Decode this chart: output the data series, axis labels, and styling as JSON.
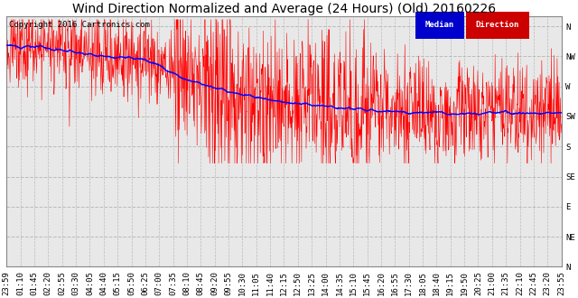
{
  "title": "Wind Direction Normalized and Average (24 Hours) (Old) 20160226",
  "copyright": "Copyright 2016 Cartronics.com",
  "background_color": "#ffffff",
  "plot_bg_color": "#e8e8e8",
  "ytick_labels": [
    "N",
    "NW",
    "W",
    "SW",
    "S",
    "SE",
    "E",
    "NE",
    "N"
  ],
  "ytick_values": [
    360,
    315,
    270,
    225,
    180,
    135,
    90,
    45,
    0
  ],
  "ylim": [
    0,
    375
  ],
  "grid_color": "#bbbbbb",
  "grid_linestyle": "--",
  "legend_median_bg": "#0000cc",
  "legend_direction_bg": "#cc0000",
  "legend_text_color": "#ffffff",
  "red_line_color": "#ff0000",
  "blue_line_color": "#0000ff",
  "title_fontsize": 10,
  "copyright_fontsize": 6.5,
  "tick_fontsize": 6.5,
  "xtick_labels": [
    "23:59",
    "01:10",
    "01:45",
    "02:20",
    "02:55",
    "03:30",
    "04:05",
    "04:40",
    "05:15",
    "05:50",
    "06:25",
    "07:00",
    "07:35",
    "08:10",
    "08:45",
    "09:20",
    "09:55",
    "10:30",
    "11:05",
    "11:40",
    "12:15",
    "12:50",
    "13:25",
    "14:00",
    "14:35",
    "15:10",
    "15:45",
    "16:20",
    "16:55",
    "17:30",
    "18:05",
    "18:40",
    "19:15",
    "19:50",
    "20:25",
    "21:00",
    "21:35",
    "22:10",
    "22:45",
    "23:20",
    "23:55"
  ]
}
